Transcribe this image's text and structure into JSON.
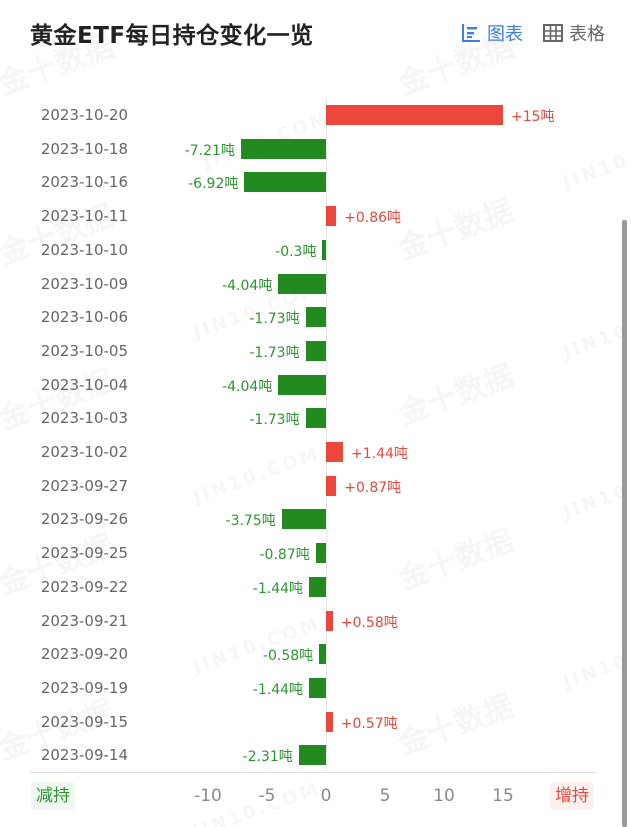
{
  "header": {
    "title": "黄金ETF每日持仓变化一览",
    "view_toggle": [
      {
        "label": "图表",
        "icon": "bar-chart-icon",
        "active": true
      },
      {
        "label": "表格",
        "icon": "table-grid-icon",
        "active": false
      }
    ]
  },
  "colors": {
    "increase": "#eb473c",
    "decrease": "#238a22",
    "active_toggle": "#3f7ee8"
  },
  "legend": {
    "decrease_label": "减持",
    "increase_label": "增持"
  },
  "watermark": {
    "cn": "金十数据",
    "en": "JIN10.COM"
  },
  "chart_data": {
    "type": "bar",
    "orientation": "horizontal",
    "title": "黄金ETF每日持仓变化一览",
    "unit": "吨",
    "xlabel": "",
    "ylabel": "",
    "xlim": [
      -12,
      20
    ],
    "x_ticks": [
      "-10",
      "-5",
      "0",
      "5",
      "10",
      "15"
    ],
    "x_tick_values": [
      -10,
      -5,
      0,
      5,
      10,
      15
    ],
    "grid": false,
    "categories": [
      "2023-10-20",
      "2023-10-18",
      "2023-10-16",
      "2023-10-11",
      "2023-10-10",
      "2023-10-09",
      "2023-10-06",
      "2023-10-05",
      "2023-10-04",
      "2023-10-03",
      "2023-10-02",
      "2023-09-27",
      "2023-09-26",
      "2023-09-25",
      "2023-09-22",
      "2023-09-21",
      "2023-09-20",
      "2023-09-19",
      "2023-09-15",
      "2023-09-14"
    ],
    "values": [
      15,
      -7.21,
      -6.92,
      0.86,
      -0.3,
      -4.04,
      -1.73,
      -1.73,
      -4.04,
      -1.73,
      1.44,
      0.87,
      -3.75,
      -0.87,
      -1.44,
      0.58,
      -0.58,
      -1.44,
      0.57,
      -2.31
    ],
    "labels": [
      "+15吨",
      "-7.21吨",
      "-6.92吨",
      "+0.86吨",
      "-0.3吨",
      "-4.04吨",
      "-1.73吨",
      "-1.73吨",
      "-4.04吨",
      "-1.73吨",
      "+1.44吨",
      "+0.87吨",
      "-3.75吨",
      "-0.87吨",
      "-1.44吨",
      "+0.58吨",
      "-0.58吨",
      "-1.44吨",
      "+0.57吨",
      "-2.31吨"
    ],
    "legend": {
      "negative": "减持",
      "positive": "增持",
      "position": "bottom"
    }
  }
}
